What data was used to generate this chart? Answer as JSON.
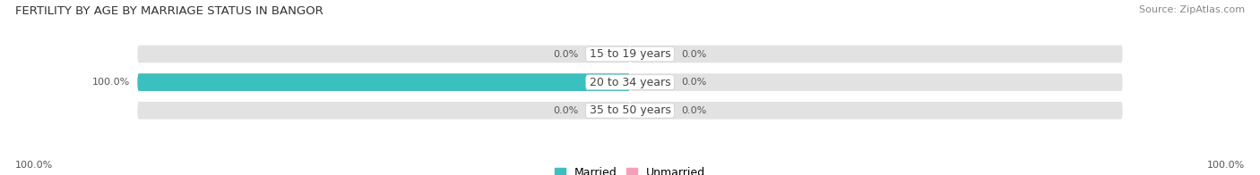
{
  "title": "FERTILITY BY AGE BY MARRIAGE STATUS IN BANGOR",
  "source": "Source: ZipAtlas.com",
  "rows": [
    {
      "label": "15 to 19 years",
      "married": 0.0,
      "unmarried": 0.0
    },
    {
      "label": "20 to 34 years",
      "married": 100.0,
      "unmarried": 0.0
    },
    {
      "label": "35 to 50 years",
      "married": 0.0,
      "unmarried": 0.0
    }
  ],
  "married_color": "#3bbfbf",
  "unmarried_color": "#f4a0b5",
  "bar_bg_color": "#e2e2e2",
  "bar_height": 0.62,
  "married_label": "Married",
  "unmarried_label": "Unmarried",
  "left_annotation": "100.0%",
  "right_annotation": "100.0%",
  "title_fontsize": 9.5,
  "label_fontsize": 9,
  "tick_fontsize": 8,
  "source_fontsize": 8,
  "bg_color": "#ffffff",
  "center_label_color": "#444444",
  "value_label_color": "#555555"
}
